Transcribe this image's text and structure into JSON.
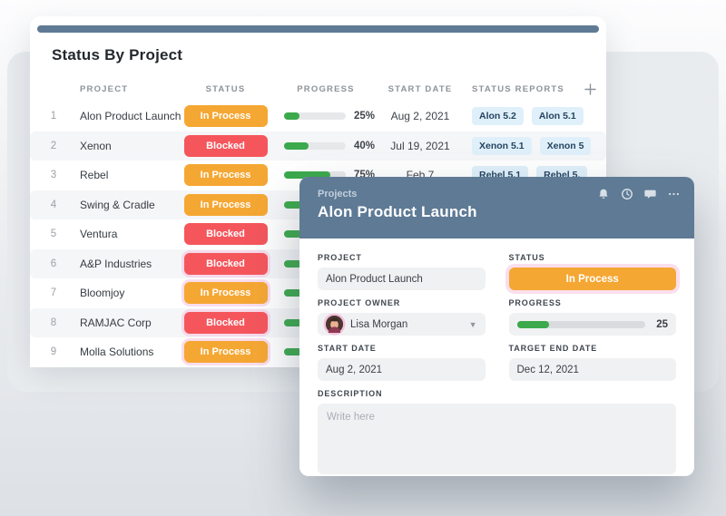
{
  "colors": {
    "in_process": "#F5A733",
    "blocked": "#F4565C",
    "progress_green": "#3BA94C",
    "slate_header": "#5E7A95",
    "tag_bg": "#DFF0FA",
    "tag_text": "#264460"
  },
  "table": {
    "title": "Status By Project",
    "columns": [
      "PROJECT",
      "STATUS",
      "PROGRESS",
      "START DATE",
      "STATUS REPORTS"
    ],
    "add_column_icon": "plus-icon",
    "rows": [
      {
        "num": "1",
        "project": "Alon Product Launch",
        "status": "In Process",
        "progress_pct": 25,
        "start_date": "Aug 2, 2021",
        "reports": [
          "Alon 5.2",
          "Alon 5.1"
        ],
        "highlight": false
      },
      {
        "num": "2",
        "project": "Xenon",
        "status": "Blocked",
        "progress_pct": 40,
        "start_date": "Jul 19, 2021",
        "reports": [
          "Xenon 5.1",
          "Xenon 5"
        ],
        "highlight": false
      },
      {
        "num": "3",
        "project": "Rebel",
        "status": "In Process",
        "progress_pct": 75,
        "start_date": "Feb 7",
        "reports": [
          "Rebel 5.1",
          "Rebel 5."
        ],
        "highlight": false
      },
      {
        "num": "4",
        "project": "Swing & Cradle",
        "status": "In Process",
        "progress_pct": null,
        "start_date": "",
        "reports": [],
        "highlight": false
      },
      {
        "num": "5",
        "project": "Ventura",
        "status": "Blocked",
        "progress_pct": null,
        "start_date": "",
        "reports": [],
        "highlight": false
      },
      {
        "num": "6",
        "project": "A&P Industries",
        "status": "Blocked",
        "progress_pct": null,
        "start_date": "",
        "reports": [],
        "highlight": true
      },
      {
        "num": "7",
        "project": "Bloomjoy",
        "status": "In Process",
        "progress_pct": null,
        "start_date": "",
        "reports": [],
        "highlight": true
      },
      {
        "num": "8",
        "project": "RAMJAC Corp",
        "status": "Blocked",
        "progress_pct": null,
        "start_date": "",
        "reports": [],
        "highlight": true
      },
      {
        "num": "9",
        "project": "Molla Solutions",
        "status": "In Process",
        "progress_pct": null,
        "start_date": "",
        "reports": [],
        "highlight": true
      }
    ]
  },
  "modal": {
    "breadcrumb": "Projects",
    "title": "Alon Product Launch",
    "header_icons": [
      "bell-icon",
      "clock-icon",
      "chat-icon",
      "more-icon"
    ],
    "fields": {
      "project": {
        "label": "PROJECT",
        "value": "Alon Product Launch"
      },
      "status": {
        "label": "STATUS",
        "value": "In Process"
      },
      "owner": {
        "label": "PROJECT OWNER",
        "value": "Lisa Morgan"
      },
      "progress": {
        "label": "PROGRESS",
        "value": "25",
        "pct": 25
      },
      "start_date": {
        "label": "START DATE",
        "value": "Aug 2, 2021"
      },
      "target_end_date": {
        "label": "TARGET END DATE",
        "value": "Dec 12, 2021"
      },
      "description": {
        "label": "DESCRIPTION",
        "placeholder": "Write here"
      }
    }
  }
}
